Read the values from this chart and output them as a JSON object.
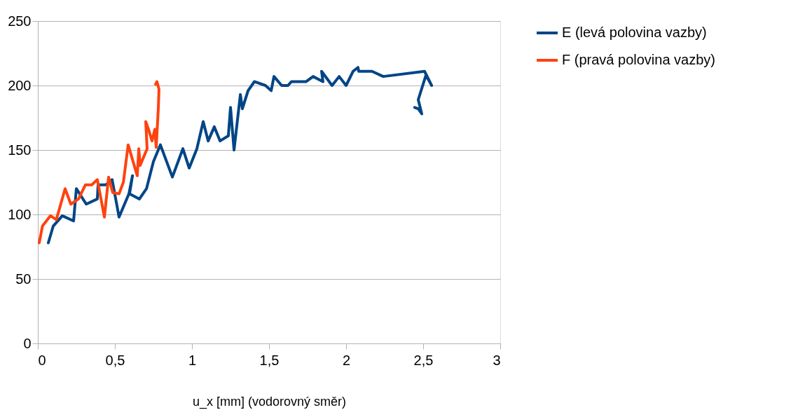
{
  "chart_data": {
    "type": "line",
    "xlabel": "u_x [mm] (vodorovný směr)",
    "xlim": [
      0,
      3
    ],
    "xticks": [
      0,
      {
        "value": 0.5,
        "label": "0,5"
      },
      1,
      {
        "value": 1.5,
        "label": "1,5"
      },
      2,
      {
        "value": 2.5,
        "label": "2,5"
      },
      3
    ],
    "ylim": [
      0,
      250
    ],
    "yticks": [
      0,
      50,
      100,
      150,
      200,
      250
    ],
    "grid": "y",
    "legend": "right",
    "line_style": "solid",
    "marker": "none",
    "series": [
      {
        "name": "E (levá polovina vazby)",
        "color": "#004586",
        "x": [
          0.068,
          0.1,
          0.159,
          0.232,
          0.25,
          0.314,
          0.386,
          0.391,
          0.441,
          0.482,
          0.527,
          0.591,
          0.614,
          0.595,
          0.659,
          0.705,
          0.75,
          0.795,
          0.873,
          0.941,
          0.982,
          1.032,
          1.073,
          1.105,
          1.145,
          1.182,
          1.236,
          1.25,
          1.273,
          1.314,
          1.327,
          1.364,
          1.405,
          1.477,
          1.514,
          1.532,
          1.582,
          1.623,
          1.645,
          1.741,
          1.786,
          1.85,
          1.841,
          1.909,
          1.955,
          2.0,
          2.045,
          2.077,
          2.082,
          2.123,
          2.168,
          2.241,
          2.509,
          2.555,
          2.518,
          2.468,
          2.491,
          2.468,
          2.445
        ],
        "values": [
          78,
          91,
          99,
          95,
          120,
          108,
          112,
          123,
          123,
          127,
          98,
          116,
          130,
          116,
          112,
          120,
          141,
          154,
          129,
          151,
          136,
          151,
          172,
          157,
          168,
          157,
          161,
          183,
          150,
          193,
          182,
          196,
          203,
          200,
          196,
          207,
          200,
          200,
          203,
          203,
          207,
          203,
          211,
          200,
          207,
          200,
          211,
          214,
          211,
          211,
          211,
          207,
          211,
          200,
          208,
          189,
          178,
          182,
          183
        ]
      },
      {
        "name": "F (pravá polovina vazby)",
        "color": "#ff420e",
        "x": [
          0.009,
          0.03,
          0.082,
          0.12,
          0.177,
          0.214,
          0.264,
          0.309,
          0.35,
          0.386,
          0.432,
          0.459,
          0.486,
          0.527,
          0.555,
          0.586,
          0.645,
          0.655,
          0.664,
          0.709,
          0.7,
          0.718,
          0.741,
          0.759,
          0.768,
          0.782,
          0.786,
          0.773,
          0.764
        ],
        "values": [
          78,
          91,
          99,
          96,
          120,
          108,
          112,
          123,
          123,
          127,
          98,
          129,
          117,
          116,
          125,
          154,
          130,
          151,
          138,
          151,
          172,
          166,
          157,
          166,
          152,
          183,
          197,
          203,
          201
        ]
      }
    ]
  }
}
